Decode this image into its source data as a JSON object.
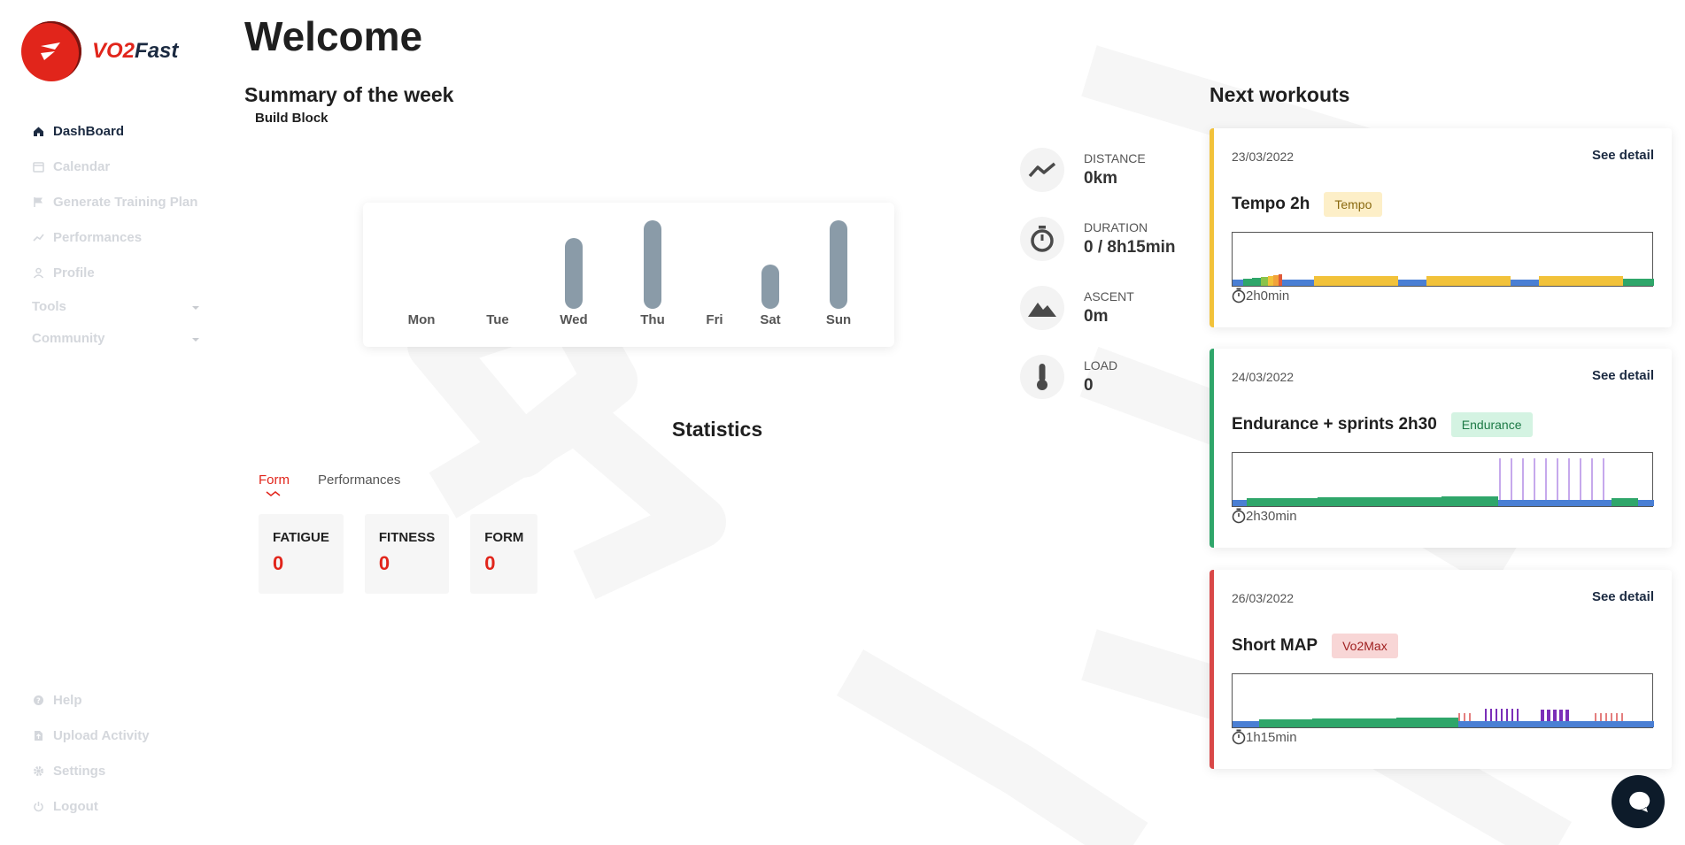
{
  "brand": {
    "name_prefix": "VO2",
    "name_suffix": "Fast",
    "accent": "#e1251b",
    "navy": "#1b2a41"
  },
  "sidebar": {
    "items": [
      {
        "label": "DashBoard",
        "icon": "home-icon",
        "active": true
      },
      {
        "label": "Calendar",
        "icon": "calendar-icon"
      },
      {
        "label": "Generate Training Plan",
        "icon": "flag-icon"
      },
      {
        "label": "Performances",
        "icon": "trend-icon"
      },
      {
        "label": "Profile",
        "icon": "user-icon"
      }
    ],
    "groups": [
      {
        "label": "Tools"
      },
      {
        "label": "Community"
      }
    ],
    "bottom": [
      {
        "label": "Help",
        "icon": "help-icon"
      },
      {
        "label": "Upload Activity",
        "icon": "upload-icon"
      },
      {
        "label": "Settings",
        "icon": "gear-icon"
      },
      {
        "label": "Logout",
        "icon": "power-icon"
      }
    ]
  },
  "page": {
    "title": "Welcome"
  },
  "summary": {
    "title": "Summary of the week",
    "block": "Build Block"
  },
  "chart_data": {
    "type": "bar",
    "categories": [
      "Mon",
      "Tue",
      "Wed",
      "Thu",
      "Fri",
      "Sat",
      "Sun"
    ],
    "values": [
      0,
      0,
      0.8,
      1.0,
      0,
      0.5,
      1.0
    ],
    "ylim": [
      0,
      1
    ],
    "title": "",
    "xlabel": "",
    "ylabel": "",
    "grid": false,
    "bar_color": "#8a9ba8"
  },
  "statistics": {
    "title": "Statistics",
    "tabs": [
      {
        "label": "Form",
        "active": true
      },
      {
        "label": "Performances",
        "active": false
      }
    ],
    "boxes": [
      {
        "label": "FATIGUE",
        "value": "0"
      },
      {
        "label": "FITNESS",
        "value": "0"
      },
      {
        "label": "FORM",
        "value": "0"
      }
    ]
  },
  "metrics": [
    {
      "label": "DISTANCE",
      "value": "0km",
      "icon": "trend-line-icon"
    },
    {
      "label": "DURATION",
      "value": "0 / 8h15min",
      "icon": "stopwatch-icon"
    },
    {
      "label": "ASCENT",
      "value": "0m",
      "icon": "mountain-icon"
    },
    {
      "label": "LOAD",
      "value": "0",
      "icon": "thermometer-icon"
    }
  ],
  "next_workouts": {
    "title": "Next workouts",
    "detail_label": "See detail",
    "items": [
      {
        "date": "23/03/2022",
        "name": "Tempo 2h",
        "tag": "Tempo",
        "tag_bg": "#fdefc8",
        "tag_color": "#8a6a10",
        "border": "#f2c23a",
        "duration": "2h0min"
      },
      {
        "date": "24/03/2022",
        "name": "Endurance + sprints 2h30",
        "tag": "Endurance",
        "tag_bg": "#d4f3e2",
        "tag_color": "#1d7a46",
        "border": "#2fa66a",
        "duration": "2h30min"
      },
      {
        "date": "26/03/2022",
        "name": "Short MAP",
        "tag": "Vo2Max",
        "tag_bg": "#f8d6d6",
        "tag_color": "#a02020",
        "border": "#d94848",
        "duration": "1h15min"
      }
    ]
  },
  "chat": {
    "icon": "chat-bubble-icon"
  }
}
